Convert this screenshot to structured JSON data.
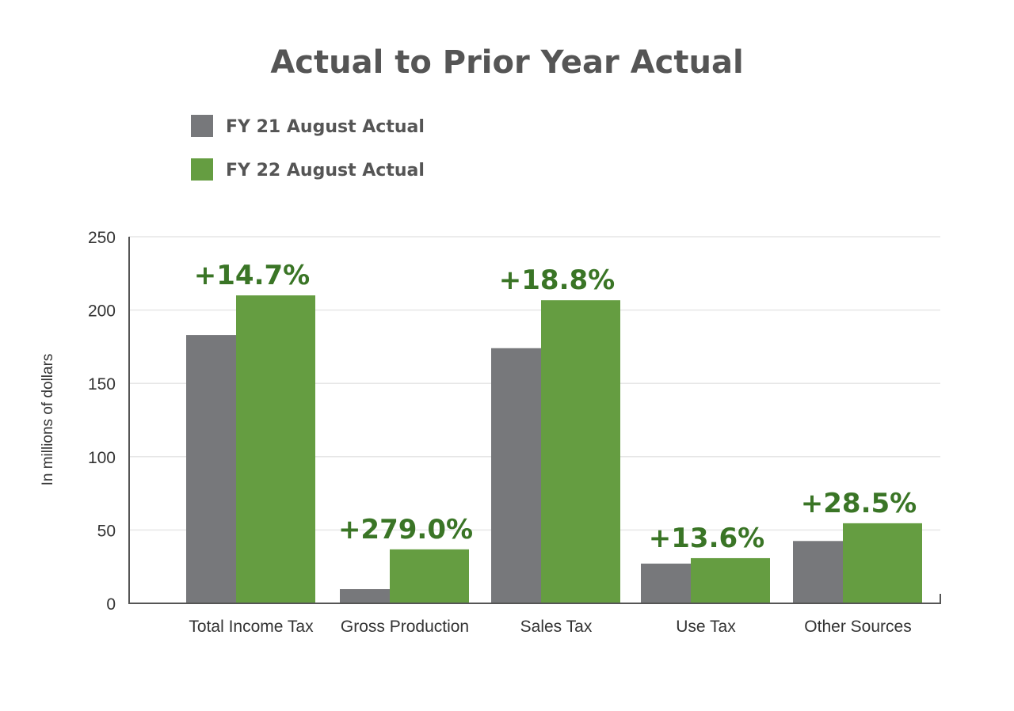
{
  "chart_data": {
    "type": "bar",
    "title": "Actual to Prior Year Actual",
    "ylabel": "In millions of dollars",
    "xlabel": "",
    "ylim": [
      0,
      250
    ],
    "yticks": [
      "0",
      "50",
      "100",
      "150",
      "200",
      "250"
    ],
    "grid": true,
    "legend_position": "top-left",
    "categories": [
      "Total Income Tax",
      "Gross Production",
      "Sales Tax",
      "Use Tax",
      "Other Sources"
    ],
    "series": [
      {
        "name": "FY 21 August Actual",
        "color": "#77787b",
        "values": [
          183,
          9.7,
          174,
          27.1,
          42.5
        ]
      },
      {
        "name": "FY 22 August Actual",
        "color": "#659d41",
        "values": [
          210,
          36.8,
          206.7,
          30.8,
          54.6
        ]
      }
    ],
    "annotations": [
      "+14.7%",
      "+279.0%",
      "+18.8%",
      "+13.6%",
      "+28.5%"
    ],
    "annotation_color": "#3a7526"
  }
}
